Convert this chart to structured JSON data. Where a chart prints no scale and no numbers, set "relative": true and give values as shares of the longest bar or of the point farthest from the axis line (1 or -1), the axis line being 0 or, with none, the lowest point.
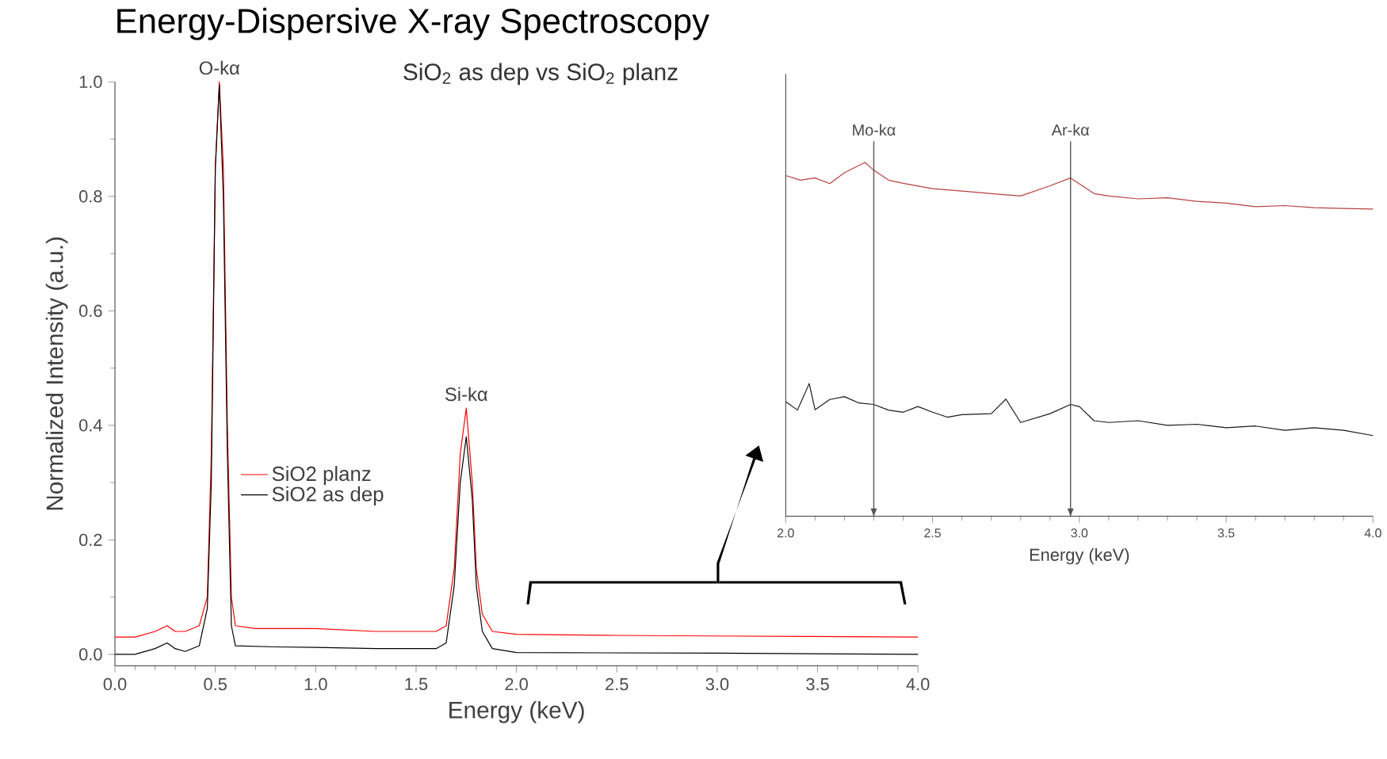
{
  "chart_data": [
    {
      "type": "line",
      "title": "Energy-Dispersive X-ray Spectroscopy",
      "subtitle": "SiO$_{2}$ as dep vs SiO$_{2}$ planz",
      "xlabel": "Energy (keV)",
      "ylabel": "Normalized Intensity (a.u.)",
      "xlim": [
        0,
        4
      ],
      "ylim": [
        -0.02,
        1.0
      ],
      "xticks": [
        {
          "value": 0,
          "label": "0.0"
        },
        0.5,
        {
          "value": 1,
          "label": "1.0"
        },
        1.5,
        {
          "value": 2,
          "label": "2.0"
        },
        2.5,
        {
          "value": 3,
          "label": "3.0"
        },
        3.5,
        {
          "value": 4,
          "label": "4.0"
        }
      ],
      "yticks": [
        {
          "value": 0,
          "label": "0.0"
        },
        0.2,
        0.4,
        0.6,
        0.8,
        {
          "value": 1,
          "label": "1.0"
        }
      ],
      "legend": "left",
      "marker": "none",
      "line_style": "solid",
      "series": [
        {
          "name": "SiO2 planz",
          "color": "#ff0000",
          "x": [
            0,
            0.1,
            0.2,
            0.26,
            0.3,
            0.35,
            0.42,
            0.46,
            0.48,
            0.5,
            0.52,
            0.54,
            0.56,
            0.58,
            0.6,
            0.7,
            1.0,
            1.3,
            1.6,
            1.65,
            1.69,
            1.72,
            1.75,
            1.78,
            1.8,
            1.83,
            1.88,
            2.0,
            2.5,
            3.0,
            3.5,
            4.0
          ],
          "values": [
            0.03,
            0.03,
            0.04,
            0.05,
            0.04,
            0.04,
            0.05,
            0.1,
            0.35,
            0.85,
            1.0,
            0.85,
            0.4,
            0.1,
            0.05,
            0.045,
            0.045,
            0.04,
            0.04,
            0.05,
            0.15,
            0.35,
            0.43,
            0.3,
            0.15,
            0.07,
            0.04,
            0.035,
            0.033,
            0.032,
            0.031,
            0.03
          ]
        },
        {
          "name": "SiO2 as dep",
          "color": "#000000",
          "x": [
            0,
            0.1,
            0.2,
            0.26,
            0.3,
            0.35,
            0.42,
            0.46,
            0.48,
            0.5,
            0.52,
            0.54,
            0.56,
            0.58,
            0.6,
            0.8,
            1.0,
            1.3,
            1.6,
            1.65,
            1.69,
            1.72,
            1.75,
            1.78,
            1.8,
            1.83,
            1.88,
            2.0,
            3.0,
            4.0
          ],
          "values": [
            0,
            0,
            0.01,
            0.02,
            0.01,
            0.005,
            0.015,
            0.08,
            0.3,
            0.85,
            0.995,
            0.8,
            0.35,
            0.05,
            0.015,
            0.013,
            0.012,
            0.01,
            0.01,
            0.02,
            0.12,
            0.3,
            0.38,
            0.27,
            0.12,
            0.04,
            0.01,
            0.003,
            0.002,
            0
          ]
        }
      ],
      "annotations": [
        {
          "text": "O-kα",
          "x": 0.52,
          "y": 1.0
        },
        {
          "text": "Si-kα",
          "x": 1.75,
          "y": 0.43
        }
      ]
    },
    {
      "type": "line",
      "relative": true,
      "xlabel": "Energy (keV)",
      "xlim": [
        2,
        4
      ],
      "xticks": [
        {
          "value": 2,
          "label": "2.0"
        },
        2.5,
        {
          "value": 3,
          "label": "3.0"
        },
        3.5,
        {
          "value": 4,
          "label": "4.0"
        }
      ],
      "tick_labels": "x",
      "marker": "none",
      "line_style": "solid",
      "series": [
        {
          "color": "#b84040",
          "x": [
            2.0,
            2.05,
            2.1,
            2.15,
            2.2,
            2.27,
            2.3,
            2.35,
            2.4,
            2.5,
            2.6,
            2.7,
            2.8,
            2.9,
            2.97,
            3.05,
            3.1,
            3.2,
            3.3,
            3.4,
            3.5,
            3.6,
            3.7,
            3.8,
            3.9,
            4.0
          ],
          "values": [
            0.963,
            0.95,
            0.956,
            0.94,
            0.971,
            1.0,
            0.978,
            0.95,
            0.941,
            0.926,
            0.919,
            0.912,
            0.905,
            0.934,
            0.956,
            0.912,
            0.905,
            0.897,
            0.9,
            0.89,
            0.885,
            0.875,
            0.878,
            0.872,
            0.87,
            0.868
          ]
        },
        {
          "color": "#1a1a1a",
          "x": [
            2.0,
            2.04,
            2.08,
            2.1,
            2.15,
            2.2,
            2.25,
            2.3,
            2.35,
            2.4,
            2.45,
            2.5,
            2.55,
            2.6,
            2.7,
            2.75,
            2.8,
            2.9,
            2.97,
            3.0,
            3.05,
            3.1,
            3.2,
            3.3,
            3.4,
            3.5,
            3.6,
            3.7,
            3.8,
            3.9,
            4.0
          ],
          "values": [
            0.324,
            0.3,
            0.375,
            0.301,
            0.33,
            0.338,
            0.32,
            0.316,
            0.3,
            0.294,
            0.31,
            0.294,
            0.28,
            0.287,
            0.29,
            0.331,
            0.265,
            0.29,
            0.316,
            0.31,
            0.27,
            0.265,
            0.27,
            0.257,
            0.26,
            0.25,
            0.255,
            0.243,
            0.25,
            0.243,
            0.228
          ]
        }
      ],
      "ref_lines": [
        {
          "axis": "x",
          "value": 2.3,
          "label": "Mo-kα",
          "color": "#555555"
        },
        {
          "axis": "x",
          "value": 2.97,
          "label": "Ar-kα",
          "color": "#555555"
        }
      ]
    }
  ]
}
